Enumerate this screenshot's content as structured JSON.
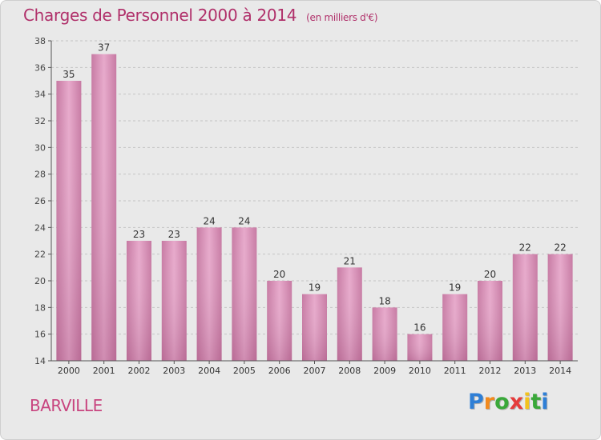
{
  "chart_data": {
    "type": "bar",
    "title": "Charges de Personnel 2000 à 2014",
    "subtitle": "(en milliers d'€)",
    "categories": [
      "2000",
      "2001",
      "2002",
      "2003",
      "2004",
      "2005",
      "2006",
      "2007",
      "2008",
      "2009",
      "2010",
      "2011",
      "2012",
      "2013",
      "2014"
    ],
    "values": [
      35,
      37,
      23,
      23,
      24,
      24,
      20,
      19,
      21,
      18,
      16,
      19,
      20,
      22,
      22
    ],
    "ylim": [
      14,
      38
    ],
    "yticks": [
      14,
      16,
      18,
      20,
      22,
      24,
      26,
      28,
      30,
      32,
      34,
      36,
      38
    ],
    "grid": true,
    "bar_color": "#d98bb5"
  },
  "place": "BARVILLE",
  "logo": {
    "letters": [
      "P",
      "r",
      "o",
      "x",
      "i",
      "t",
      "i"
    ],
    "colors": [
      "#2f7fd6",
      "#f28a1e",
      "#3aa83a",
      "#e53b3b",
      "#f2c21e",
      "#3aa83a",
      "#2f7fd6"
    ]
  }
}
